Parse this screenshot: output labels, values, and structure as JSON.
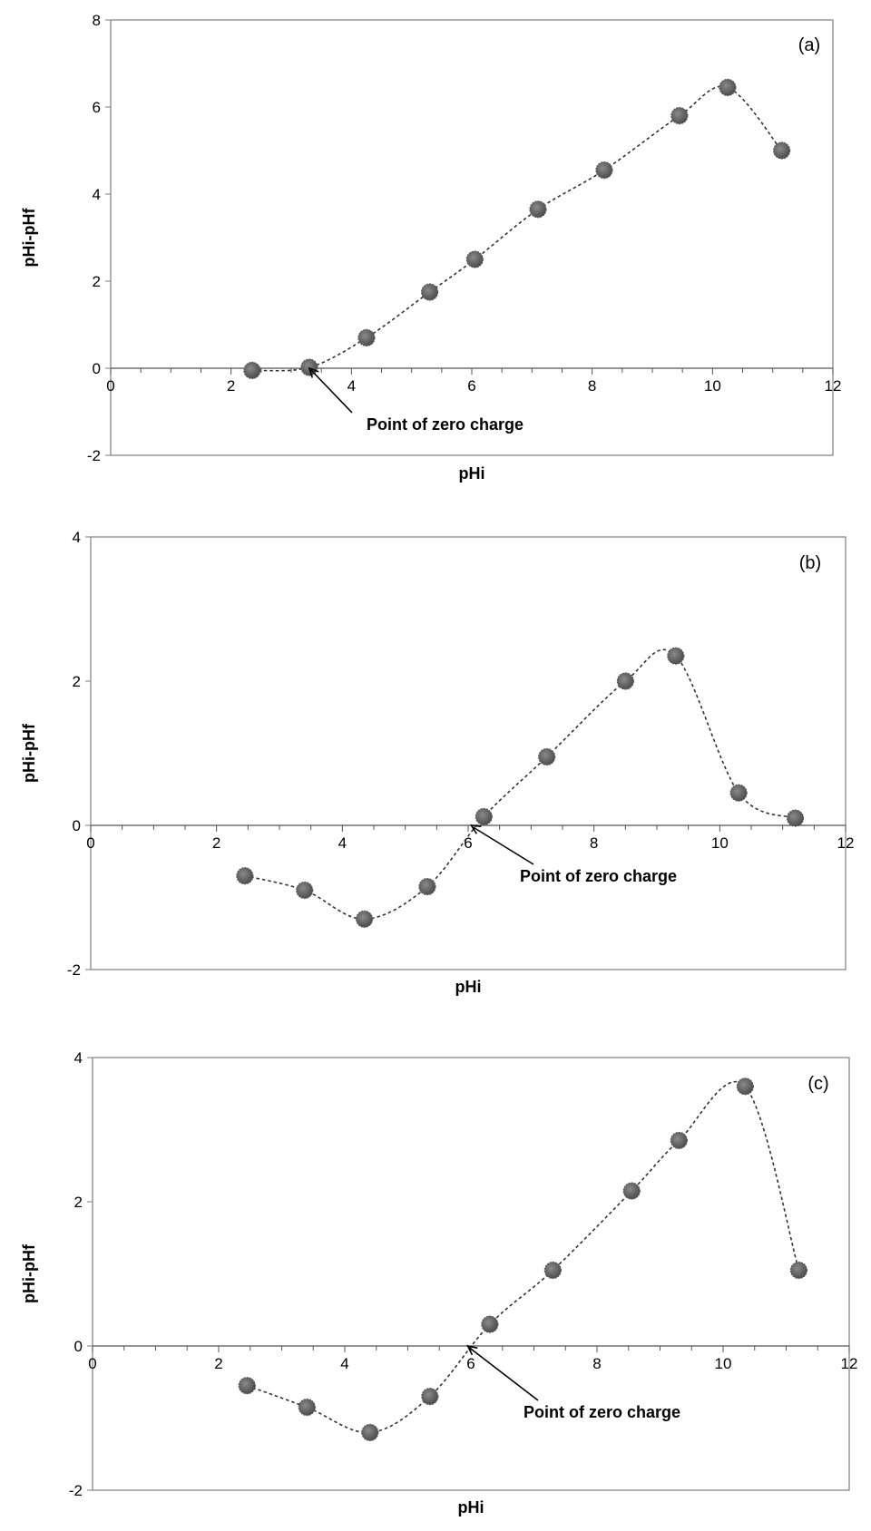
{
  "chart_data": [
    {
      "type": "scatter",
      "panel_label": "(a)",
      "xlabel": "pHi",
      "ylabel": "pHi-pHf",
      "xlim": [
        0,
        12
      ],
      "ylim": [
        -2,
        8
      ],
      "xticks": [
        "0",
        "2",
        "4",
        "6",
        "8",
        "10",
        "12"
      ],
      "yticks": [
        "-2",
        "0",
        "2",
        "4",
        "6",
        "8"
      ],
      "grid": false,
      "x": [
        2.35,
        3.3,
        4.25,
        5.3,
        6.05,
        7.1,
        8.2,
        9.45,
        10.25,
        11.15
      ],
      "y": [
        -0.05,
        0.02,
        0.7,
        1.75,
        2.5,
        3.65,
        4.55,
        5.8,
        6.45,
        5.0
      ],
      "annotation": {
        "text": "Point of zero charge",
        "x": 3.3,
        "y": 0
      }
    },
    {
      "type": "scatter",
      "panel_label": "(b)",
      "xlabel": "pHi",
      "ylabel": "pHi-pHf",
      "xlim": [
        0,
        12
      ],
      "ylim": [
        -2,
        4
      ],
      "xticks": [
        "0",
        "2",
        "4",
        "6",
        "8",
        "10",
        "12"
      ],
      "yticks": [
        "-2",
        "0",
        "2",
        "4"
      ],
      "grid": false,
      "x": [
        2.45,
        3.4,
        4.35,
        5.35,
        6.25,
        7.25,
        8.5,
        9.3,
        10.3,
        11.2
      ],
      "y": [
        -0.7,
        -0.9,
        -1.3,
        -0.85,
        0.12,
        0.95,
        2.0,
        2.35,
        0.45,
        0.1
      ],
      "annotation": {
        "text": "Point of zero charge",
        "x": 6.05,
        "y": 0
      }
    },
    {
      "type": "scatter",
      "panel_label": "(c)",
      "xlabel": "pHi",
      "ylabel": "pHi-pHf",
      "xlim": [
        0,
        12
      ],
      "ylim": [
        -2,
        4
      ],
      "xticks": [
        "0",
        "2",
        "4",
        "6",
        "8",
        "10",
        "12"
      ],
      "yticks": [
        "-2",
        "0",
        "2",
        "4"
      ],
      "grid": false,
      "x": [
        2.45,
        3.4,
        4.4,
        5.35,
        6.3,
        7.3,
        8.55,
        9.3,
        10.35,
        11.2
      ],
      "y": [
        -0.55,
        -0.85,
        -1.2,
        -0.7,
        0.3,
        1.05,
        2.15,
        2.85,
        3.6,
        1.05
      ],
      "annotation": {
        "text": "Point of zero charge",
        "x": 5.95,
        "y": 0
      }
    }
  ]
}
